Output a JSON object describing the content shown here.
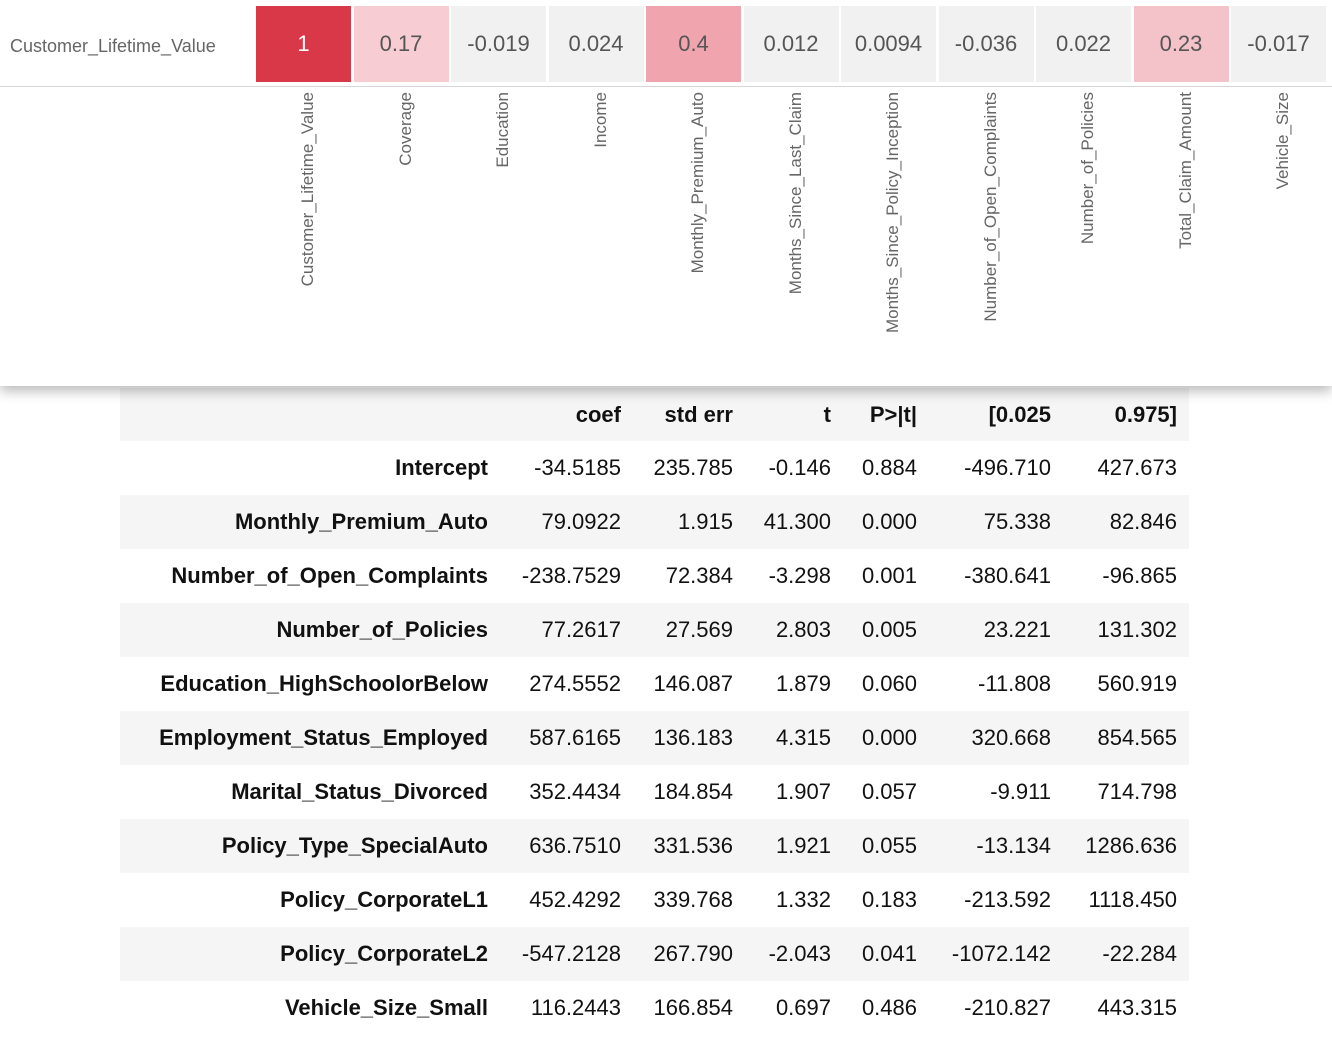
{
  "heatmap": {
    "row_label": "Customer_Lifetime_Value",
    "colors": {
      "strong": "#d93848",
      "medium": "#f0a5ae",
      "light": "#f7ccd2",
      "neutral": "#f1f1f1"
    },
    "cells": [
      {
        "value": "1",
        "column": "Customer_Lifetime_Value",
        "color": "#d93848"
      },
      {
        "value": "0.17",
        "column": "Coverage",
        "color": "#f7ccd2"
      },
      {
        "value": "-0.019",
        "column": "Education",
        "color": "#f1f1f1"
      },
      {
        "value": "0.024",
        "column": "Income",
        "color": "#f1f1f1"
      },
      {
        "value": "0.4",
        "column": "Monthly_Premium_Auto",
        "color": "#f0a5ae"
      },
      {
        "value": "0.012",
        "column": "Months_Since_Last_Claim",
        "color": "#f1f1f1"
      },
      {
        "value": "0.0094",
        "column": "Months_Since_Policy_Inception",
        "color": "#f1f1f1"
      },
      {
        "value": "-0.036",
        "column": "Number_of_Open_Complaints",
        "color": "#f1f1f1"
      },
      {
        "value": "0.022",
        "column": "Number_of_Policies",
        "color": "#f1f1f1"
      },
      {
        "value": "0.23",
        "column": "Total_Claim_Amount",
        "color": "#f4c2c9"
      },
      {
        "value": "-0.017",
        "column": "Vehicle_Size",
        "color": "#f1f1f1"
      }
    ]
  },
  "regression": {
    "headers": [
      "coef",
      "std err",
      "t",
      "P>|t|",
      "[0.025",
      "0.975]"
    ],
    "rows": [
      {
        "name": "Intercept",
        "values": [
          "-34.5185",
          "235.785",
          "-0.146",
          "0.884",
          "-496.710",
          "427.673"
        ]
      },
      {
        "name": "Monthly_Premium_Auto",
        "values": [
          "79.0922",
          "1.915",
          "41.300",
          "0.000",
          "75.338",
          "82.846"
        ]
      },
      {
        "name": "Number_of_Open_Complaints",
        "values": [
          "-238.7529",
          "72.384",
          "-3.298",
          "0.001",
          "-380.641",
          "-96.865"
        ]
      },
      {
        "name": "Number_of_Policies",
        "values": [
          "77.2617",
          "27.569",
          "2.803",
          "0.005",
          "23.221",
          "131.302"
        ]
      },
      {
        "name": "Education_HighSchoolorBelow",
        "values": [
          "274.5552",
          "146.087",
          "1.879",
          "0.060",
          "-11.808",
          "560.919"
        ]
      },
      {
        "name": "Employment_Status_Employed",
        "values": [
          "587.6165",
          "136.183",
          "4.315",
          "0.000",
          "320.668",
          "854.565"
        ]
      },
      {
        "name": "Marital_Status_Divorced",
        "values": [
          "352.4434",
          "184.854",
          "1.907",
          "0.057",
          "-9.911",
          "714.798"
        ]
      },
      {
        "name": "Policy_Type_SpecialAuto",
        "values": [
          "636.7510",
          "331.536",
          "1.921",
          "0.055",
          "-13.134",
          "1286.636"
        ]
      },
      {
        "name": "Policy_CorporateL1",
        "values": [
          "452.4292",
          "339.768",
          "1.332",
          "0.183",
          "-213.592",
          "1118.450"
        ]
      },
      {
        "name": "Policy_CorporateL2",
        "values": [
          "-547.2128",
          "267.790",
          "-2.043",
          "0.041",
          "-1072.142",
          "-22.284"
        ]
      },
      {
        "name": "Vehicle_Size_Small",
        "values": [
          "116.2443",
          "166.854",
          "0.697",
          "0.486",
          "-210.827",
          "443.315"
        ]
      }
    ]
  }
}
